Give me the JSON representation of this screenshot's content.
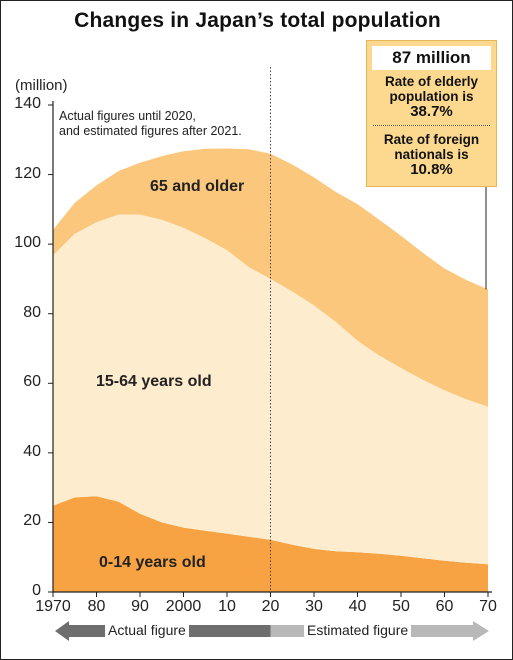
{
  "page": {
    "title": "Changes in Japan’s total population",
    "unit_label": "(million)",
    "note_line1": "Actual figures until 2020,",
    "note_line2": "and estimated figures after 2021."
  },
  "callout": {
    "headline": "87 million",
    "elderly_text": "Rate of elderly population is",
    "elderly_value": "38.7%",
    "foreign_text": "Rate of foreign nationals is",
    "foreign_value": "10.8%"
  },
  "segment_labels": {
    "age65": "65 and older",
    "age15_64": "15-64 years old",
    "age0_14": "0-14 years old"
  },
  "arrows": {
    "actual": "Actual figure",
    "estimated": "Estimated figure"
  },
  "colors": {
    "age0_14": "#f8a343",
    "age15_64": "#fdeccd",
    "age65": "#fbc77c",
    "arrow_actual": "#6e6e6e",
    "arrow_estimated": "#b8b8b8"
  },
  "chart_data": {
    "type": "area",
    "stacked": true,
    "title": "Changes in Japan’s total population",
    "ylabel": "(million)",
    "xlabel": "",
    "ylim": [
      0,
      140
    ],
    "xlim": [
      1970,
      2070
    ],
    "actual_until": 2020,
    "yticks": [
      0,
      20,
      40,
      60,
      80,
      100,
      120,
      140
    ],
    "xticks": [
      1970,
      1980,
      1990,
      2000,
      2010,
      2020,
      2030,
      2040,
      2050,
      2060,
      2070
    ],
    "xtick_labels": [
      "1970",
      "80",
      "90",
      "2000",
      "10",
      "20",
      "30",
      "40",
      "50",
      "60",
      "70"
    ],
    "x": [
      1970,
      1975,
      1980,
      1985,
      1990,
      1995,
      2000,
      2005,
      2010,
      2015,
      2020,
      2025,
      2030,
      2035,
      2040,
      2045,
      2050,
      2055,
      2060,
      2065,
      2070
    ],
    "series": [
      {
        "name": "0-14 years old",
        "values": [
          24.8,
          27.2,
          27.5,
          26.0,
          22.5,
          20.0,
          18.5,
          17.6,
          16.8,
          15.9,
          15.0,
          13.6,
          12.4,
          11.7,
          11.4,
          11.0,
          10.4,
          9.7,
          9.0,
          8.4,
          8.0
        ]
      },
      {
        "name": "15-64 years old",
        "values": [
          72.0,
          75.8,
          78.8,
          82.5,
          86.0,
          87.0,
          86.2,
          84.1,
          81.5,
          77.5,
          75.0,
          72.8,
          70.0,
          66.0,
          60.8,
          57.0,
          54.0,
          51.3,
          49.0,
          47.0,
          45.3
        ]
      },
      {
        "name": "65 and older",
        "values": [
          7.3,
          8.9,
          10.6,
          12.5,
          14.9,
          18.3,
          22.0,
          25.7,
          29.2,
          33.9,
          36.0,
          36.5,
          36.8,
          37.3,
          39.3,
          39.0,
          38.0,
          36.5,
          35.0,
          34.3,
          33.7
        ]
      }
    ]
  }
}
